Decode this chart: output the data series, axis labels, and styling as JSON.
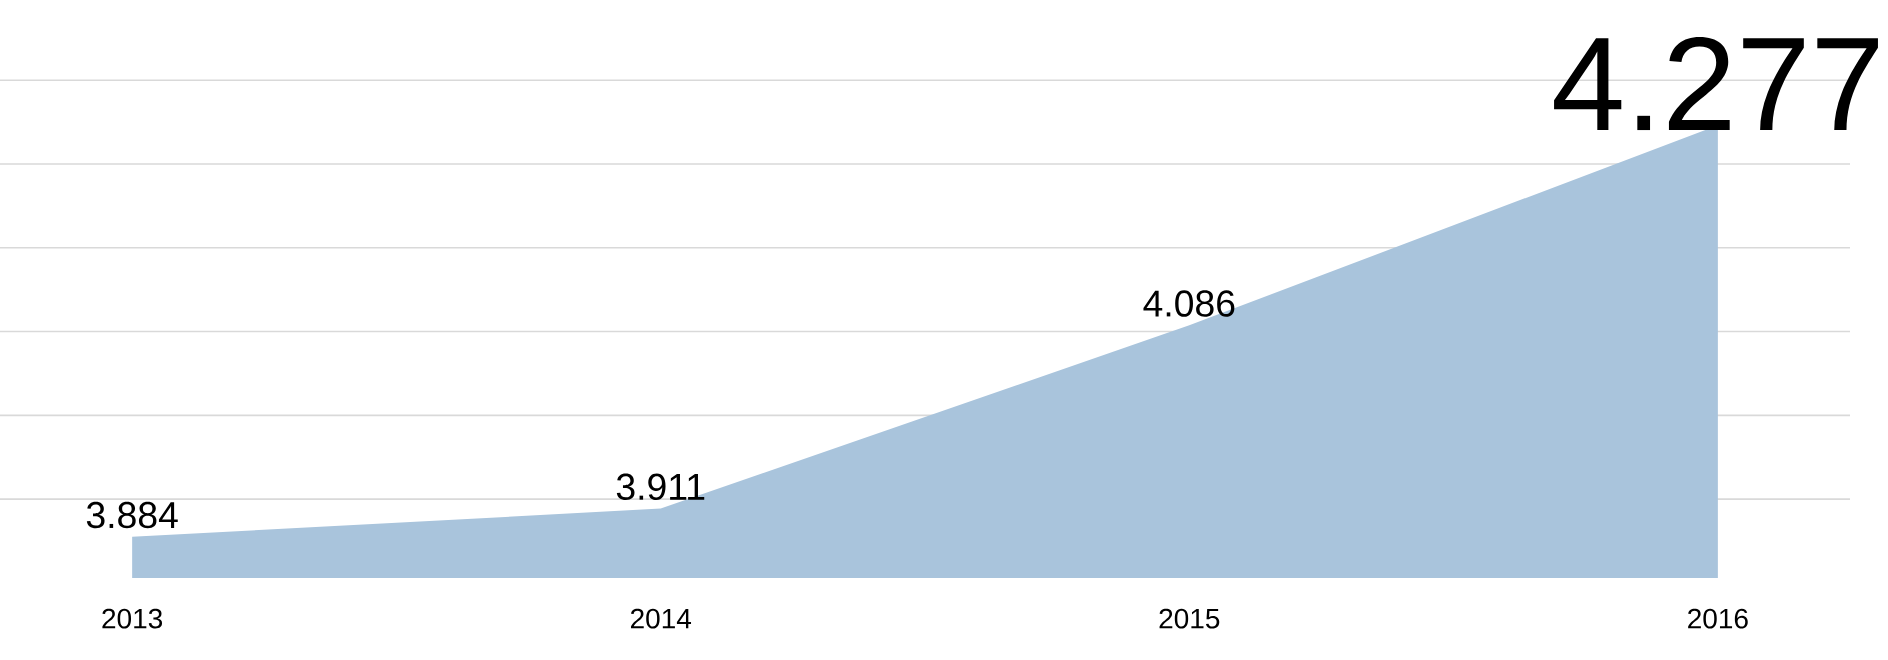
{
  "chart_data": {
    "type": "area",
    "x": [
      2013,
      2014,
      2015,
      2016
    ],
    "values": [
      3.884,
      3.911,
      4.086,
      4.277
    ],
    "color": "#a9c4dc",
    "data_labels": true,
    "xlim": [
      2012.75,
      2016.25
    ],
    "xticks": [
      2013,
      2014,
      2015,
      2016
    ],
    "grid": "y",
    "tick_labels": "x",
    "marker": "none"
  }
}
